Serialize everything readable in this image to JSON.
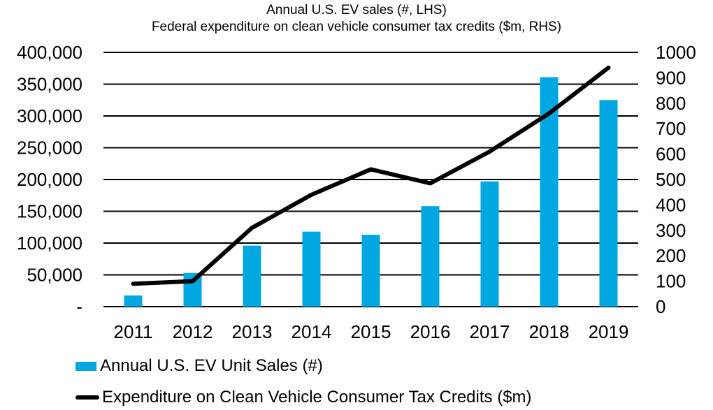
{
  "chart_data": {
    "type": "combo",
    "title_lines": [
      "Annual U.S. EV sales (#, LHS)",
      "Federal expenditure on clean vehicle consumer tax credits ($m, RHS)"
    ],
    "categories": [
      "2011",
      "2012",
      "2013",
      "2014",
      "2015",
      "2016",
      "2017",
      "2018",
      "2019"
    ],
    "series": [
      {
        "name": "Annual U.S. EV Unit Sales (#)",
        "type": "bar",
        "axis": "left",
        "color": "#00A7E1",
        "values": [
          17500,
          53000,
          96000,
          118000,
          113000,
          158000,
          197000,
          361000,
          325000
        ]
      },
      {
        "name": "Expenditure on Clean Vehicle Consumer Tax Credits ($m)",
        "type": "line",
        "axis": "right",
        "color": "#000000",
        "values": [
          90,
          100,
          310,
          440,
          540,
          485,
          610,
          760,
          940
        ]
      }
    ],
    "left_axis": {
      "min": 0,
      "max": 400000,
      "ticks": [
        {
          "label": "400,000",
          "value": 400000
        },
        {
          "label": "350,000",
          "value": 350000
        },
        {
          "label": "300,000",
          "value": 300000
        },
        {
          "label": "250,000",
          "value": 250000
        },
        {
          "label": "200,000",
          "value": 200000
        },
        {
          "label": "150,000",
          "value": 150000
        },
        {
          "label": "100,000",
          "value": 100000
        },
        {
          "label": "50,000",
          "value": 50000
        },
        {
          "label": "-",
          "value": 0
        }
      ]
    },
    "right_axis": {
      "min": 0,
      "max": 1000,
      "ticks": [
        {
          "label": "1000",
          "value": 1000
        },
        {
          "label": "900",
          "value": 900
        },
        {
          "label": "800",
          "value": 800
        },
        {
          "label": "700",
          "value": 700
        },
        {
          "label": "600",
          "value": 600
        },
        {
          "label": "500",
          "value": 500
        },
        {
          "label": "400",
          "value": 400
        },
        {
          "label": "300",
          "value": 300
        },
        {
          "label": "200",
          "value": 200
        },
        {
          "label": "100",
          "value": 100
        },
        {
          "label": "0",
          "value": 0
        }
      ]
    },
    "grid": {
      "horizontal": true,
      "follows": "left-axis",
      "color": "#000000"
    },
    "legend_position": "bottom-left"
  }
}
